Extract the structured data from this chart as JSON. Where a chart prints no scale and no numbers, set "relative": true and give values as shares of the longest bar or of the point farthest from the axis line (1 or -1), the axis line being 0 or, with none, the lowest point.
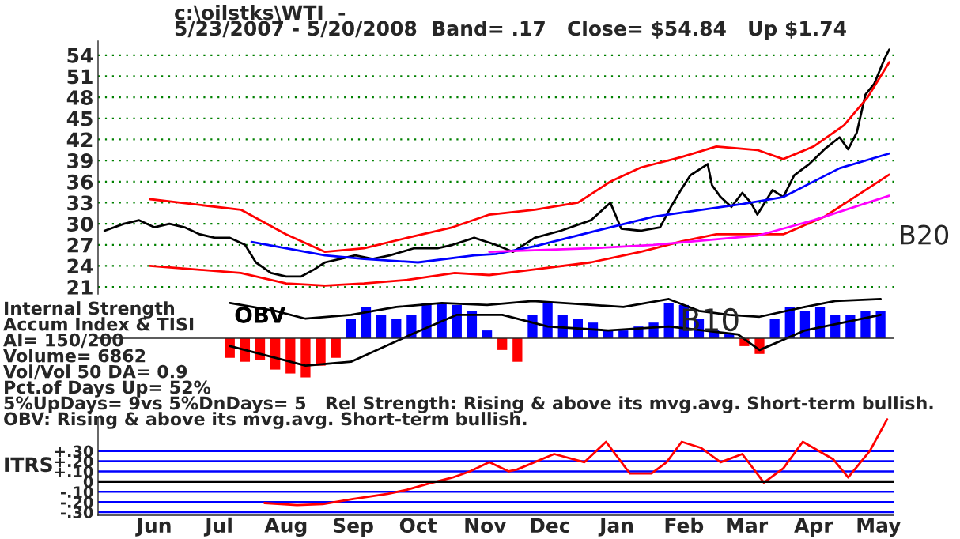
{
  "chart_data": [
    {
      "type": "line",
      "title": "c:\\oilstks\\WTI  -",
      "subtitle": "5/23/2007 - 5/20/2008  Band= .17   Close= $54.84   Up $1.74",
      "xlim": [
        "2007-05-20",
        "2008-05-22"
      ],
      "ylim": [
        20,
        56
      ],
      "yticks": [
        21,
        24,
        27,
        30,
        33,
        36,
        39,
        42,
        45,
        48,
        51,
        54
      ],
      "tick_labels": "y",
      "grid": "y",
      "series": [
        {
          "color": "#000000",
          "x": [
            "2007-05-23",
            "2007-06-01",
            "2007-06-08",
            "2007-06-15",
            "2007-06-22",
            "2007-06-29",
            "2007-07-06",
            "2007-07-13",
            "2007-07-20",
            "2007-07-27",
            "2007-08-01",
            "2007-08-08",
            "2007-08-15",
            "2007-08-22",
            "2007-08-28",
            "2007-09-02",
            "2007-09-09",
            "2007-09-16",
            "2007-09-24",
            "2007-10-02",
            "2007-10-13",
            "2007-10-24",
            "2007-10-31",
            "2007-11-10",
            "2007-11-20",
            "2007-11-28",
            "2007-12-08",
            "2007-12-20",
            "2008-01-03",
            "2008-01-12",
            "2008-01-17",
            "2008-01-26",
            "2008-02-04",
            "2008-02-09",
            "2008-02-14",
            "2008-02-18",
            "2008-02-26",
            "2008-02-28",
            "2008-03-03",
            "2008-03-08",
            "2008-03-13",
            "2008-03-17",
            "2008-03-20",
            "2008-03-27",
            "2008-04-01",
            "2008-04-06",
            "2008-04-13",
            "2008-04-20",
            "2008-04-27",
            "2008-05-01",
            "2008-05-05",
            "2008-05-09",
            "2008-05-13",
            "2008-05-18",
            "2008-05-20"
          ],
          "values": [
            29,
            30,
            30.5,
            29.5,
            30,
            29.5,
            28.5,
            28,
            28,
            27,
            24.5,
            23,
            22.5,
            22.5,
            23.5,
            24.5,
            25,
            25.5,
            25,
            25.5,
            26.5,
            26.5,
            27,
            28,
            27,
            26,
            28,
            29,
            30.5,
            33,
            29.3,
            29,
            29.5,
            32.4,
            35,
            36.9,
            38.5,
            35.5,
            33.8,
            32.4,
            34.4,
            33,
            31.3,
            34.8,
            33.8,
            36.9,
            38.5,
            40.6,
            42.3,
            40.6,
            43,
            48.4,
            49.9,
            53.6,
            54.8
          ]
        },
        {
          "color": "#ff0000",
          "x": [
            "2007-06-13",
            "2007-07-25",
            "2007-08-15",
            "2007-09-02",
            "2007-09-20",
            "2007-10-10",
            "2007-10-31",
            "2007-11-17",
            "2007-12-08",
            "2007-12-28",
            "2008-01-12",
            "2008-01-26",
            "2008-02-14",
            "2008-03-01",
            "2008-03-20",
            "2008-04-01",
            "2008-04-15",
            "2008-04-29",
            "2008-05-10",
            "2008-05-20"
          ],
          "values": [
            33.5,
            32,
            28.5,
            26,
            26.5,
            28,
            29.5,
            31.3,
            32,
            33,
            36,
            38,
            39.5,
            41,
            40.5,
            39.2,
            41,
            44,
            48,
            53
          ]
        },
        {
          "color": "#ff0000",
          "x": [
            "2007-06-13",
            "2007-07-25",
            "2007-08-15",
            "2007-09-02",
            "2007-09-20",
            "2007-10-10",
            "2007-11-01",
            "2007-11-17",
            "2007-12-08",
            "2008-01-03",
            "2008-01-26",
            "2008-02-14",
            "2008-03-01",
            "2008-03-20",
            "2008-04-01",
            "2008-04-20",
            "2008-05-05",
            "2008-05-20"
          ],
          "values": [
            24,
            23,
            21.5,
            21.2,
            21.5,
            22,
            23,
            22.7,
            23.5,
            24.5,
            26,
            27.5,
            28.5,
            28.5,
            28.5,
            31,
            34,
            37
          ]
        },
        {
          "color": "#0000ff",
          "x": [
            "2007-07-30",
            "2007-09-02",
            "2007-09-20",
            "2007-10-15",
            "2007-11-10",
            "2007-11-20",
            "2007-12-08",
            "2008-01-12",
            "2008-02-01",
            "2008-03-13",
            "2008-04-01",
            "2008-04-27",
            "2008-05-20"
          ],
          "values": [
            27.4,
            25.5,
            25,
            24.5,
            25.5,
            25.7,
            26.8,
            29.5,
            31,
            32.8,
            33.8,
            37.9,
            40
          ]
        },
        {
          "color": "#ff00ff",
          "x": [
            "2007-11-17",
            "2008-01-03",
            "2008-02-01",
            "2008-03-20",
            "2008-04-15",
            "2008-05-20"
          ],
          "values": [
            26,
            26.5,
            27,
            28.3,
            30.5,
            34
          ]
        }
      ],
      "annotations": [
        "B20"
      ]
    },
    {
      "type": "bar",
      "relative": true,
      "tick_labels": false,
      "xlim": [
        "2007-05-20",
        "2008-05-22"
      ],
      "series": [
        {
          "type": "bar",
          "x": [
            "2007-07-20",
            "2007-07-27",
            "2007-08-03",
            "2007-08-10",
            "2007-08-17",
            "2007-08-24",
            "2007-08-31",
            "2007-09-07",
            "2007-09-14",
            "2007-09-21",
            "2007-09-28",
            "2007-10-05",
            "2007-10-12",
            "2007-10-19",
            "2007-10-26",
            "2007-11-02",
            "2007-11-09",
            "2007-11-16",
            "2007-11-23",
            "2007-11-30",
            "2007-12-07",
            "2007-12-14",
            "2007-12-21",
            "2007-12-28",
            "2008-01-04",
            "2008-01-11",
            "2008-01-18",
            "2008-01-25",
            "2008-02-01",
            "2008-02-08",
            "2008-02-15",
            "2008-02-22",
            "2008-02-29",
            "2008-03-07",
            "2008-03-14",
            "2008-03-21",
            "2008-03-28",
            "2008-04-04",
            "2008-04-11",
            "2008-04-18",
            "2008-04-25",
            "2008-05-02",
            "2008-05-09",
            "2008-05-16"
          ],
          "values": [
            -0.5,
            -0.6,
            -0.55,
            -0.8,
            -0.9,
            -1,
            -0.7,
            -0.5,
            0.5,
            0.8,
            0.6,
            0.5,
            0.6,
            0.9,
            0.9,
            0.85,
            0.7,
            0.2,
            -0.3,
            -0.6,
            0.6,
            0.9,
            0.6,
            0.5,
            0.4,
            0.2,
            0.2,
            0.3,
            0.4,
            0.9,
            0.85,
            0.5,
            0.2,
            0.1,
            -0.2,
            -0.4,
            0.5,
            0.8,
            0.7,
            0.8,
            0.6,
            0.6,
            0.7,
            0.7
          ],
          "colors": [
            "#ff0000",
            "#ff0000",
            "#ff0000",
            "#ff0000",
            "#ff0000",
            "#ff0000",
            "#ff0000",
            "#ff0000",
            "#0000ff",
            "#0000ff",
            "#0000ff",
            "#0000ff",
            "#0000ff",
            "#0000ff",
            "#0000ff",
            "#0000ff",
            "#0000ff",
            "#0000ff",
            "#ff0000",
            "#ff0000",
            "#0000ff",
            "#0000ff",
            "#0000ff",
            "#0000ff",
            "#0000ff",
            "#0000ff",
            "#0000ff",
            "#0000ff",
            "#0000ff",
            "#0000ff",
            "#0000ff",
            "#0000ff",
            "#0000ff",
            "#0000ff",
            "#ff0000",
            "#ff0000",
            "#0000ff",
            "#0000ff",
            "#0000ff",
            "#0000ff",
            "#0000ff",
            "#0000ff",
            "#0000ff",
            "#0000ff"
          ]
        },
        {
          "type": "line",
          "color": "#000000",
          "x": [
            "2007-07-20",
            "2007-08-24",
            "2007-09-14",
            "2007-10-12",
            "2007-11-02",
            "2007-11-23",
            "2007-12-14",
            "2008-01-11",
            "2008-02-08",
            "2008-03-11",
            "2008-03-21",
            "2008-04-11",
            "2008-05-16"
          ],
          "values": [
            -0.2,
            -0.7,
            -0.6,
            0.1,
            0.6,
            0.6,
            0.3,
            0.2,
            0.3,
            0.1,
            -0.3,
            0.2,
            0.6
          ]
        },
        {
          "type": "line",
          "name": "OBV",
          "color": "#000000",
          "x": [
            "2007-07-20",
            "2007-08-10",
            "2007-08-24",
            "2007-09-14",
            "2007-10-05",
            "2007-10-26",
            "2007-11-16",
            "2007-12-07",
            "2008-01-04",
            "2008-01-18",
            "2008-02-08",
            "2008-02-22",
            "2008-03-07",
            "2008-03-21",
            "2008-04-11",
            "2008-04-25",
            "2008-05-16"
          ],
          "values": [
            0.9,
            0.7,
            0.5,
            0.6,
            0.8,
            0.9,
            0.85,
            0.95,
            0.85,
            0.8,
            1,
            0.7,
            0.6,
            0.55,
            0.8,
            0.95,
            1
          ]
        }
      ],
      "annotations": [
        "Internal Strength",
        "Accum Index & TISI",
        "AI= 150/200",
        "Volume= 6862",
        "Vol/Vol 50 DA= 0.9",
        "Pct.of Days Up= 52%",
        "5%UpDays= 9vs 5%DnDays= 5   Rel Strength: Rising & above its mvg.avg. Short-term bullish.",
        "OBV: Rising & above its mvg.avg. Short-term bullish.",
        "B10"
      ]
    },
    {
      "type": "line",
      "ylabel": "ITRS",
      "xlim": [
        "2007-05-20",
        "2008-05-22"
      ],
      "ylim": [
        -0.33,
        0.63
      ],
      "grid": "y",
      "yticks": [
        {
          "value": -0.3,
          "label": "-.30"
        },
        {
          "value": -0.2,
          "label": "-.20"
        },
        {
          "value": -0.1,
          "label": "-.10"
        },
        {
          "value": 0,
          "label": "0"
        },
        {
          "value": 0.1,
          "label": "+.10"
        },
        {
          "value": 0.2,
          "label": "+.20"
        },
        {
          "value": 0.3,
          "label": "+.30"
        }
      ],
      "xticks": [
        {
          "value": "2007-06-15",
          "label": "Jun"
        },
        {
          "value": "2007-07-15",
          "label": "Jul"
        },
        {
          "value": "2007-08-15",
          "label": "Aug"
        },
        {
          "value": "2007-09-15",
          "label": "Sep"
        },
        {
          "value": "2007-10-15",
          "label": "Oct"
        },
        {
          "value": "2007-11-15",
          "label": "Nov"
        },
        {
          "value": "2007-12-15",
          "label": "Dec"
        },
        {
          "value": "2008-01-15",
          "label": "Jan"
        },
        {
          "value": "2008-02-15",
          "label": "Feb"
        },
        {
          "value": "2008-03-15",
          "label": "Mar"
        },
        {
          "value": "2008-04-15",
          "label": "Apr"
        },
        {
          "value": "2008-05-15",
          "label": "May"
        }
      ],
      "ref_lines": [
        {
          "axis": "y",
          "value": 0,
          "color": "#000000"
        }
      ],
      "series": [
        {
          "color": "#ff0000",
          "x": [
            "2007-08-05",
            "2007-08-20",
            "2007-09-01",
            "2007-09-15",
            "2007-10-01",
            "2007-10-10",
            "2007-10-20",
            "2007-10-31",
            "2007-11-08",
            "2007-11-17",
            "2007-11-26",
            "2007-11-30",
            "2007-12-17",
            "2007-12-31",
            "2008-01-10",
            "2008-01-21",
            "2008-01-31",
            "2008-02-07",
            "2008-02-14",
            "2008-02-23",
            "2008-03-03",
            "2008-03-13",
            "2008-03-23",
            "2008-04-01",
            "2008-04-10",
            "2008-04-24",
            "2008-05-01",
            "2008-05-11",
            "2008-05-19"
          ],
          "values": [
            -0.21,
            -0.23,
            -0.22,
            -0.17,
            -0.12,
            -0.08,
            -0.02,
            0.04,
            0.1,
            0.19,
            0.1,
            0.12,
            0.27,
            0.19,
            0.39,
            0.08,
            0.08,
            0.19,
            0.39,
            0.33,
            0.19,
            0.27,
            -0.01,
            0.13,
            0.39,
            0.22,
            0.04,
            0.3,
            0.61
          ]
        }
      ]
    }
  ]
}
